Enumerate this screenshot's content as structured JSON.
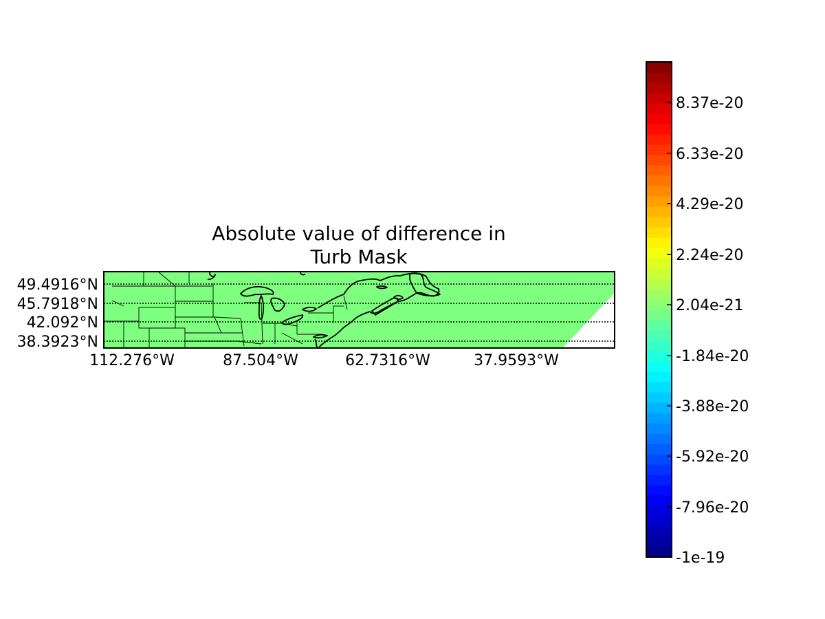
{
  "title_lines": [
    "Absolute value of difference in",
    "Turb Mask"
  ],
  "map": {
    "fill_color": "#7fff7f",
    "background_color": "#ffffff",
    "parallels_style": "dotted",
    "lat_labels": [
      "49.4916°N",
      "45.7918°N",
      "42.092°N",
      "38.3923°N"
    ],
    "lon_labels": [
      "112.276°W",
      "87.504°W",
      "62.7316°W",
      "37.9593°W"
    ]
  },
  "colorbar": {
    "colormap": "jet",
    "min": "-1e-19",
    "tick_labels": [
      "8.37e-20",
      "6.33e-20",
      "4.29e-20",
      "2.24e-20",
      "2.04e-21",
      "-1.84e-20",
      "-3.88e-20",
      "-5.92e-20",
      "-7.96e-20",
      "-1e-19"
    ]
  }
}
